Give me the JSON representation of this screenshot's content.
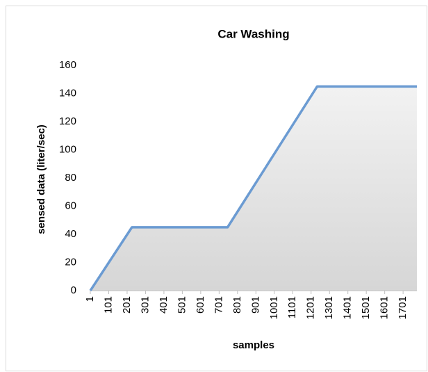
{
  "chart_data": {
    "type": "area",
    "title": "Car Washing",
    "xlabel": "samples",
    "ylabel": "sensed data (liter/sec)",
    "x": [
      1,
      227,
      747,
      1234,
      1776
    ],
    "values": [
      0,
      45,
      45,
      145,
      145
    ],
    "color": "#6b9bd2",
    "xlim": [
      1,
      1776
    ],
    "xticks": [
      1,
      101,
      201,
      301,
      401,
      501,
      601,
      701,
      801,
      901,
      1001,
      1101,
      1201,
      1301,
      1401,
      1501,
      1601,
      1701
    ],
    "ylim": [
      0,
      160
    ],
    "yticks": [
      0,
      20,
      40,
      60,
      80,
      100,
      120,
      140,
      160
    ]
  }
}
